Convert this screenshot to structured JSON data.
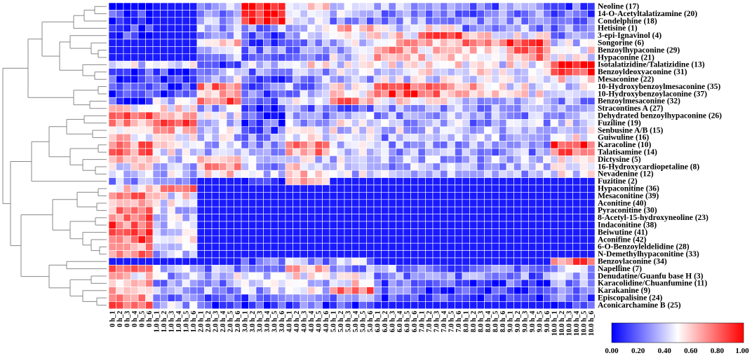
{
  "chart_data": {
    "type": "heatmap",
    "rows": [
      "Neoline (17)",
      "14-O-Acetyltalatizamine (20)",
      "Condelphine (18)",
      "Hetisine (1)",
      "3-epi-Ignavinol (4)",
      "Songorine (6)",
      "Benzoylhypaconine (29)",
      "Hypaconine (21)",
      "Isotalatizidine/Talatizidine (13)",
      "Benzoyldeoxyaconine (31)",
      "Mesaconine (22)",
      "10-Hydroxybenzoylmesaconine (35)",
      "10-Hydroxybenzoylaconine (37)",
      "Benzoylmesaconine (32)",
      "Stracontines A (27)",
      "Dehydrated benzoylhypaconine (26)",
      "Fuziline (19)",
      "Senbusine A/B (15)",
      "Guiwuline (16)",
      "Karacoline (10)",
      "Talatisamine (14)",
      "Dictysine (5)",
      "16-Hydroxycardiopetaline (8)",
      "Nevadenine (12)",
      "Fuzitine (2)",
      "Hypaconitine (36)",
      "Mesaconitine (39)",
      "Aconitine (40)",
      "Pyraconitine (30)",
      "8-Acetyl-15-hydroxyneoline (23)",
      "Indaconitine (38)",
      "Beiwutine (41)",
      "Aconifine (42)",
      "6-O-Benzoyleldelidine (28)",
      "N-Demethylhypaconitine (33)",
      "Benzoylaconine (34)",
      "Napelline (7)",
      "Denudatine/Guanfu base H (3)",
      "Karacolidine/Chuanfumine (11)",
      "Karakanine (9)",
      "Episcopalisine (24)",
      "Aconicarchamine B (25)"
    ],
    "columns": [
      "0 h_1",
      "0 h_2",
      "0 h_3",
      "0 h_4",
      "0 h_5",
      "0 h_6",
      "1.0 h_1",
      "1.0 h_2",
      "1.0 h_3",
      "1.0 h_4",
      "1.0 h_5",
      "1.0 h_6",
      "2.0 h_1",
      "2.0 h_2",
      "2.0 h_3",
      "2.0 h_4",
      "2.0 h_5",
      "2.0 h_6",
      "3.0 h_1",
      "3.0 h_2",
      "3.0 h_3",
      "3.0 h_4",
      "3.0 h_5",
      "3.0 h_6",
      "4.0 h_1",
      "4.0 h_2",
      "4.0 h_3",
      "4.0 h_4",
      "4.0 h_5",
      "4.0 h_6",
      "5.0 h_1",
      "5.0 h_2",
      "5.0 h_3",
      "5.0 h_4",
      "5.0 h_5",
      "5.0 h_6",
      "6.0 h_1",
      "6.0 h_2",
      "6.0 h_3",
      "6.0 h_4",
      "6.0 h_5",
      "6.0 h_6",
      "7.0 h_1",
      "7.0 h_2",
      "7.0 h_3",
      "7.0 h_4",
      "7.0 h_5",
      "7.0 h_6",
      "8.0 h_1",
      "8.0 h_2",
      "8.0 h_3",
      "8.0 h_4",
      "8.0 h_5",
      "8.0 h_6",
      "9.0 h_1",
      "9.0 h_2",
      "9.0 h_3",
      "9.0 h_4",
      "9.0 h_5",
      "9.0 h_6",
      "10.0 h_1",
      "10.0 h_2",
      "10.0 h_3",
      "10.0 h_4",
      "10.0 h_5",
      "10.0 h_6"
    ],
    "group_profiles": [
      [
        0.1,
        0.05,
        0.3,
        0.95,
        0.5,
        0.4,
        0.35,
        0.3,
        0.25,
        0.3,
        0.2
      ],
      [
        0.1,
        0.05,
        0.3,
        0.95,
        0.45,
        0.35,
        0.3,
        0.3,
        0.25,
        0.3,
        0.2
      ],
      [
        0.1,
        0.05,
        0.3,
        0.9,
        0.4,
        0.3,
        0.3,
        0.3,
        0.25,
        0.3,
        0.2
      ],
      [
        0.1,
        0.05,
        0.3,
        0.3,
        0.4,
        0.6,
        0.4,
        0.5,
        0.3,
        0.3,
        0.3
      ],
      [
        0.1,
        0.05,
        0.3,
        0.2,
        0.35,
        0.5,
        0.55,
        0.9,
        0.55,
        0.5,
        0.3
      ],
      [
        0.05,
        0.05,
        0.55,
        0.2,
        0.3,
        0.4,
        0.6,
        0.65,
        0.75,
        0.85,
        0.4
      ],
      [
        0.05,
        0.05,
        0.4,
        0.25,
        0.3,
        0.4,
        0.65,
        0.6,
        0.6,
        0.75,
        0.5
      ],
      [
        0.05,
        0.05,
        0.35,
        0.25,
        0.3,
        0.4,
        0.6,
        0.55,
        0.55,
        0.7,
        0.5
      ],
      [
        0.45,
        0.4,
        0.2,
        0.4,
        0.55,
        0.45,
        0.5,
        0.5,
        0.45,
        0.5,
        0.95
      ],
      [
        0.1,
        0.1,
        0.35,
        0.25,
        0.35,
        0.4,
        0.45,
        0.5,
        0.5,
        0.45,
        0.85
      ],
      [
        0.1,
        0.1,
        0.4,
        0.2,
        0.3,
        0.35,
        0.4,
        0.45,
        0.45,
        0.4,
        0.55
      ],
      [
        0.1,
        0.1,
        0.75,
        0.2,
        0.3,
        0.5,
        0.85,
        0.7,
        0.6,
        0.5,
        0.4
      ],
      [
        0.1,
        0.1,
        0.7,
        0.2,
        0.3,
        0.55,
        0.85,
        0.7,
        0.55,
        0.5,
        0.35
      ],
      [
        0.1,
        0.4,
        0.8,
        0.25,
        0.45,
        0.75,
        0.5,
        0.45,
        0.4,
        0.35,
        0.3
      ],
      [
        0.55,
        0.5,
        0.35,
        0.1,
        0.25,
        0.25,
        0.3,
        0.3,
        0.3,
        0.3,
        0.3
      ],
      [
        0.85,
        0.6,
        0.4,
        0.1,
        0.3,
        0.4,
        0.3,
        0.3,
        0.3,
        0.3,
        0.35
      ],
      [
        0.65,
        0.85,
        0.4,
        0.15,
        0.35,
        0.45,
        0.35,
        0.35,
        0.3,
        0.35,
        0.4
      ],
      [
        0.55,
        0.6,
        0.45,
        0.2,
        0.4,
        0.45,
        0.4,
        0.35,
        0.35,
        0.35,
        0.45
      ],
      [
        0.55,
        0.5,
        0.4,
        0.3,
        0.45,
        0.4,
        0.3,
        0.35,
        0.35,
        0.35,
        0.5
      ],
      [
        0.75,
        0.45,
        0.4,
        0.3,
        0.8,
        0.4,
        0.3,
        0.3,
        0.3,
        0.3,
        0.85
      ],
      [
        0.75,
        0.45,
        0.4,
        0.3,
        0.7,
        0.4,
        0.35,
        0.3,
        0.3,
        0.3,
        0.85
      ],
      [
        0.6,
        0.45,
        0.55,
        0.35,
        0.45,
        0.4,
        0.35,
        0.35,
        0.35,
        0.35,
        0.5
      ],
      [
        0.5,
        0.4,
        0.7,
        0.35,
        0.5,
        0.4,
        0.35,
        0.35,
        0.35,
        0.35,
        0.45
      ],
      [
        0.45,
        0.4,
        0.6,
        0.35,
        0.55,
        0.4,
        0.35,
        0.35,
        0.35,
        0.35,
        0.45
      ],
      [
        0.3,
        0.25,
        0.05,
        0.1,
        0.6,
        0.05,
        0.05,
        0.05,
        0.05,
        0.05,
        0.05
      ],
      [
        0.55,
        0.7,
        0.05,
        0.05,
        0.05,
        0.05,
        0.05,
        0.05,
        0.05,
        0.05,
        0.05
      ],
      [
        0.7,
        0.5,
        0.05,
        0.05,
        0.05,
        0.05,
        0.05,
        0.05,
        0.05,
        0.05,
        0.05
      ],
      [
        0.75,
        0.45,
        0.05,
        0.05,
        0.05,
        0.05,
        0.05,
        0.05,
        0.05,
        0.05,
        0.05
      ],
      [
        0.7,
        0.4,
        0.05,
        0.05,
        0.05,
        0.05,
        0.05,
        0.05,
        0.05,
        0.05,
        0.05
      ],
      [
        0.75,
        0.4,
        0.05,
        0.05,
        0.05,
        0.05,
        0.05,
        0.05,
        0.05,
        0.05,
        0.05
      ],
      [
        0.8,
        0.45,
        0.05,
        0.05,
        0.05,
        0.05,
        0.05,
        0.05,
        0.05,
        0.05,
        0.05
      ],
      [
        0.8,
        0.4,
        0.05,
        0.05,
        0.05,
        0.05,
        0.05,
        0.05,
        0.05,
        0.05,
        0.05
      ],
      [
        0.8,
        0.45,
        0.05,
        0.05,
        0.05,
        0.05,
        0.05,
        0.05,
        0.05,
        0.05,
        0.05
      ],
      [
        0.75,
        0.4,
        0.05,
        0.05,
        0.05,
        0.05,
        0.05,
        0.05,
        0.05,
        0.05,
        0.05
      ],
      [
        0.75,
        0.35,
        0.05,
        0.05,
        0.05,
        0.05,
        0.05,
        0.05,
        0.05,
        0.05,
        0.05
      ],
      [
        0.05,
        0.05,
        0.05,
        0.2,
        0.3,
        0.35,
        0.05,
        0.05,
        0.05,
        0.05,
        0.8
      ],
      [
        0.7,
        0.35,
        0.3,
        0.35,
        0.6,
        0.3,
        0.3,
        0.25,
        0.25,
        0.25,
        0.4
      ],
      [
        0.55,
        0.35,
        0.4,
        0.4,
        0.5,
        0.5,
        0.3,
        0.25,
        0.25,
        0.25,
        0.35
      ],
      [
        0.6,
        0.3,
        0.3,
        0.45,
        0.4,
        0.55,
        0.2,
        0.15,
        0.15,
        0.15,
        0.25
      ],
      [
        0.65,
        0.3,
        0.3,
        0.35,
        0.45,
        0.75,
        0.15,
        0.1,
        0.1,
        0.1,
        0.25
      ],
      [
        0.7,
        0.3,
        0.25,
        0.2,
        0.3,
        0.3,
        0.1,
        0.1,
        0.1,
        0.1,
        0.2
      ],
      [
        0.75,
        0.35,
        0.15,
        0.1,
        0.15,
        0.1,
        0.05,
        0.05,
        0.05,
        0.05,
        0.1
      ]
    ],
    "colorbar": {
      "min": 0.0,
      "max": 1.0,
      "ticks": [
        "0.00",
        "0.20",
        "0.40",
        "0.60",
        "0.80",
        "1.00"
      ],
      "colors": [
        "#0000ff",
        "#ffffff",
        "#ff0000"
      ]
    },
    "xlabel": "",
    "ylabel": ""
  }
}
